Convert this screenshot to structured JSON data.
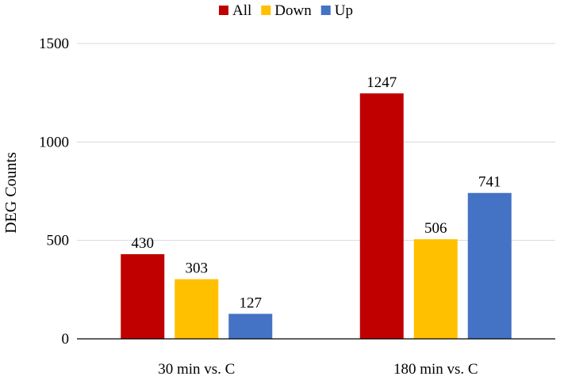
{
  "chart_data": {
    "type": "bar",
    "title": "",
    "xlabel": "",
    "ylabel": "DEG Counts",
    "ylim": [
      0,
      1500
    ],
    "yticks": [
      0,
      500,
      1000,
      1500
    ],
    "grid": true,
    "legend_position": "top-center",
    "categories": [
      "30 min vs. C",
      "180 min vs. C"
    ],
    "series": [
      {
        "name": "All",
        "color": "#c00000",
        "values": [
          430,
          1247
        ]
      },
      {
        "name": "Down",
        "color": "#ffc000",
        "values": [
          303,
          506
        ]
      },
      {
        "name": "Up",
        "color": "#4472c4",
        "values": [
          127,
          741
        ]
      }
    ]
  }
}
